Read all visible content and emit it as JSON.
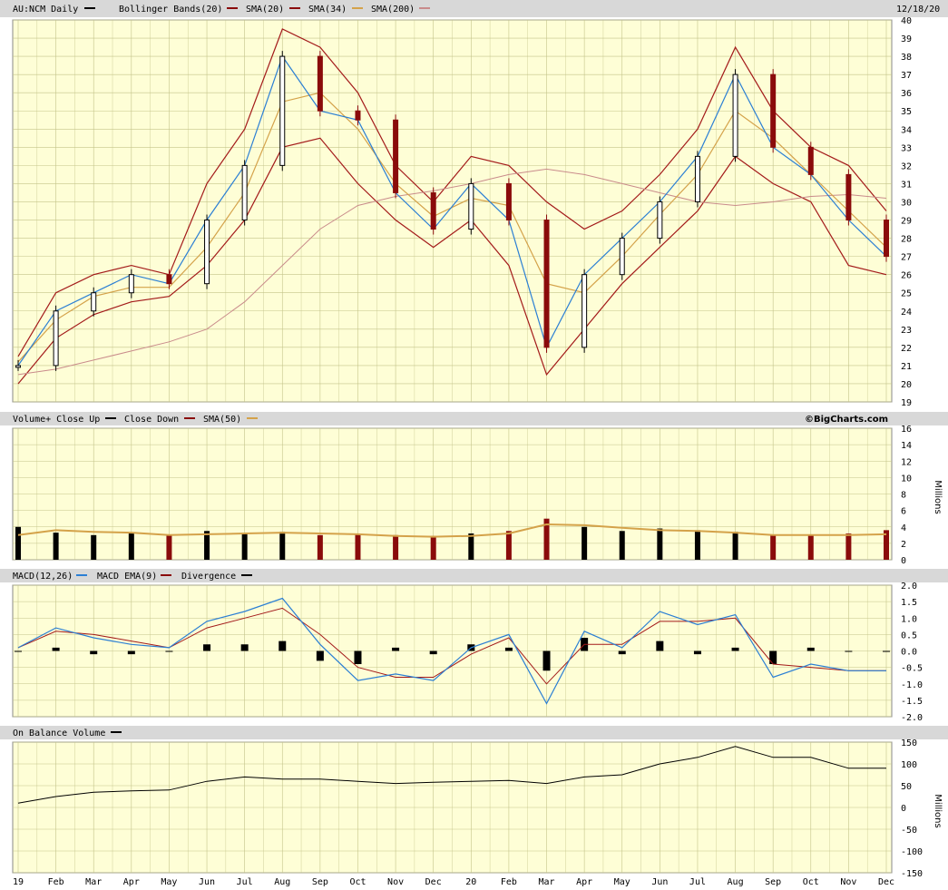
{
  "header": {
    "symbol": "AU:NCM Daily",
    "bb": "Bollinger Bands(20)",
    "sma20": "SMA(20)",
    "sma34": "SMA(34)",
    "sma200": "SMA(200)",
    "date": "12/18/20"
  },
  "brand": "©BigCharts.com",
  "colors": {
    "bg": "#fefed6",
    "grid": "#c4c48a",
    "up": "#000000",
    "down": "#8a0b0b",
    "bb": "#a31a1a",
    "sma20": "#c0392b",
    "sma34": "#d4a24a",
    "sma200": "#2b7fd4",
    "sma200ma": "#c98b8b"
  },
  "legend_icons": {
    "daily": "line-black-icon",
    "bb": "line-darkred-icon",
    "sma20": "line-red-icon",
    "sma34": "line-gold-icon",
    "sma200": "line-blue-icon",
    "sma200b": "line-pink-icon"
  },
  "volume": {
    "title_up": "Volume+ Close Up",
    "title_down": "Close Down",
    "title_sma": "SMA(50)",
    "unit": "Millions"
  },
  "macd": {
    "title": "MACD(12,26)",
    "ema": "MACD EMA(9)",
    "div": "Divergence"
  },
  "obv": {
    "title": "On Balance Volume",
    "unit": "Millions"
  },
  "chart_data": [
    {
      "type": "line",
      "name": "price",
      "ylim": [
        19,
        40
      ],
      "yticks": [
        "19",
        "20",
        "21",
        "22",
        "23",
        "24",
        "25",
        "26",
        "27",
        "28",
        "29",
        "30",
        "31",
        "32",
        "33",
        "34",
        "35",
        "36",
        "37",
        "38",
        "39",
        "40"
      ],
      "x": [
        "2019-01",
        "2019-02",
        "2019-03",
        "2019-04",
        "2019-05",
        "2019-06",
        "2019-07",
        "2019-08",
        "2019-09",
        "2019-10",
        "2019-11",
        "2019-12",
        "2020-01",
        "2020-02",
        "2020-03",
        "2020-04",
        "2020-05",
        "2020-06",
        "2020-07",
        "2020-08",
        "2020-09",
        "2020-10",
        "2020-11",
        "2020-12"
      ],
      "close": [
        21.0,
        24.0,
        25.0,
        26.0,
        25.5,
        29.0,
        32.0,
        38.0,
        35.0,
        34.5,
        30.5,
        28.5,
        31.0,
        29.0,
        22.0,
        26.0,
        28.0,
        30.0,
        32.5,
        37.0,
        33.0,
        31.5,
        29.0,
        27.0
      ],
      "sma200": [
        20.5,
        20.8,
        21.3,
        21.8,
        22.3,
        23.0,
        24.5,
        26.5,
        28.5,
        29.8,
        30.3,
        30.6,
        31.0,
        31.5,
        31.8,
        31.5,
        31.0,
        30.5,
        30.0,
        29.8,
        30.0,
        30.3,
        30.4,
        30.2
      ],
      "sma34": [
        21.2,
        23.5,
        24.8,
        25.3,
        25.3,
        27.5,
        30.5,
        35.5,
        36.0,
        34.0,
        31.0,
        29.2,
        30.2,
        29.8,
        25.5,
        25.0,
        27.0,
        29.3,
        31.5,
        35.0,
        33.5,
        31.5,
        29.5,
        27.5
      ],
      "bb_upper": [
        21.5,
        25.0,
        26.0,
        26.5,
        26.0,
        31.0,
        34.0,
        39.5,
        38.5,
        36.0,
        32.0,
        30.0,
        32.5,
        32.0,
        30.0,
        28.5,
        29.5,
        31.5,
        34.0,
        38.5,
        35.0,
        33.0,
        32.0,
        29.5
      ],
      "bb_lower": [
        20.0,
        22.5,
        23.8,
        24.5,
        24.8,
        26.5,
        29.0,
        33.0,
        33.5,
        31.0,
        29.0,
        27.5,
        29.0,
        26.5,
        20.5,
        23.0,
        25.5,
        27.5,
        29.5,
        32.5,
        31.0,
        30.0,
        26.5,
        26.0
      ],
      "ylabel": "",
      "xlabel": ""
    },
    {
      "type": "bar",
      "name": "volume",
      "ylim": [
        0,
        16
      ],
      "yticks": [
        "0",
        "2",
        "4",
        "6",
        "8",
        "10",
        "12",
        "14",
        "16"
      ],
      "ylabel": "Millions",
      "values": [
        4.0,
        3.3,
        3.0,
        3.2,
        3.0,
        3.5,
        3.2,
        3.4,
        3.0,
        3.2,
        3.0,
        2.9,
        3.2,
        3.5,
        5.0,
        4.0,
        3.5,
        3.8,
        3.6,
        3.4,
        3.0,
        3.0,
        3.2,
        3.6
      ],
      "sma50": [
        3.0,
        3.6,
        3.4,
        3.3,
        3.0,
        3.1,
        3.2,
        3.3,
        3.2,
        3.1,
        2.9,
        2.8,
        2.9,
        3.2,
        4.3,
        4.2,
        3.9,
        3.6,
        3.5,
        3.3,
        3.0,
        3.0,
        3.0,
        3.1
      ]
    },
    {
      "type": "line",
      "name": "macd",
      "ylim": [
        -2.0,
        2.0
      ],
      "yticks": [
        "2.0",
        "1.5",
        "1.0",
        "0.5",
        "0.0",
        "-0.5",
        "-1.0",
        "-1.5",
        "-2.0"
      ],
      "macd": [
        0.1,
        0.7,
        0.4,
        0.2,
        0.1,
        0.9,
        1.2,
        1.6,
        0.2,
        -0.9,
        -0.7,
        -0.9,
        0.1,
        0.5,
        -1.6,
        0.6,
        0.1,
        1.2,
        0.8,
        1.1,
        -0.8,
        -0.4,
        -0.6,
        -0.6
      ],
      "signal": [
        0.1,
        0.6,
        0.5,
        0.3,
        0.1,
        0.7,
        1.0,
        1.3,
        0.5,
        -0.5,
        -0.8,
        -0.8,
        -0.1,
        0.4,
        -1.0,
        0.2,
        0.2,
        0.9,
        0.9,
        1.0,
        -0.4,
        -0.5,
        -0.6,
        -0.6
      ]
    },
    {
      "type": "line",
      "name": "obv",
      "ylim": [
        -150,
        150
      ],
      "yticks": [
        "150",
        "100",
        "50",
        "0",
        "-50",
        "-100",
        "-150"
      ],
      "ylabel": "Millions",
      "values": [
        10,
        25,
        35,
        38,
        40,
        60,
        70,
        65,
        65,
        60,
        55,
        58,
        60,
        62,
        55,
        70,
        75,
        100,
        115,
        140,
        115,
        115,
        90,
        90
      ]
    }
  ],
  "xaxis_labels": [
    "19",
    "Feb",
    "Mar",
    "Apr",
    "May",
    "Jun",
    "Jul",
    "Aug",
    "Sep",
    "Oct",
    "Nov",
    "Dec",
    "20",
    "Feb",
    "Mar",
    "Apr",
    "May",
    "Jun",
    "Jul",
    "Aug",
    "Sep",
    "Oct",
    "Nov",
    "Dec"
  ]
}
